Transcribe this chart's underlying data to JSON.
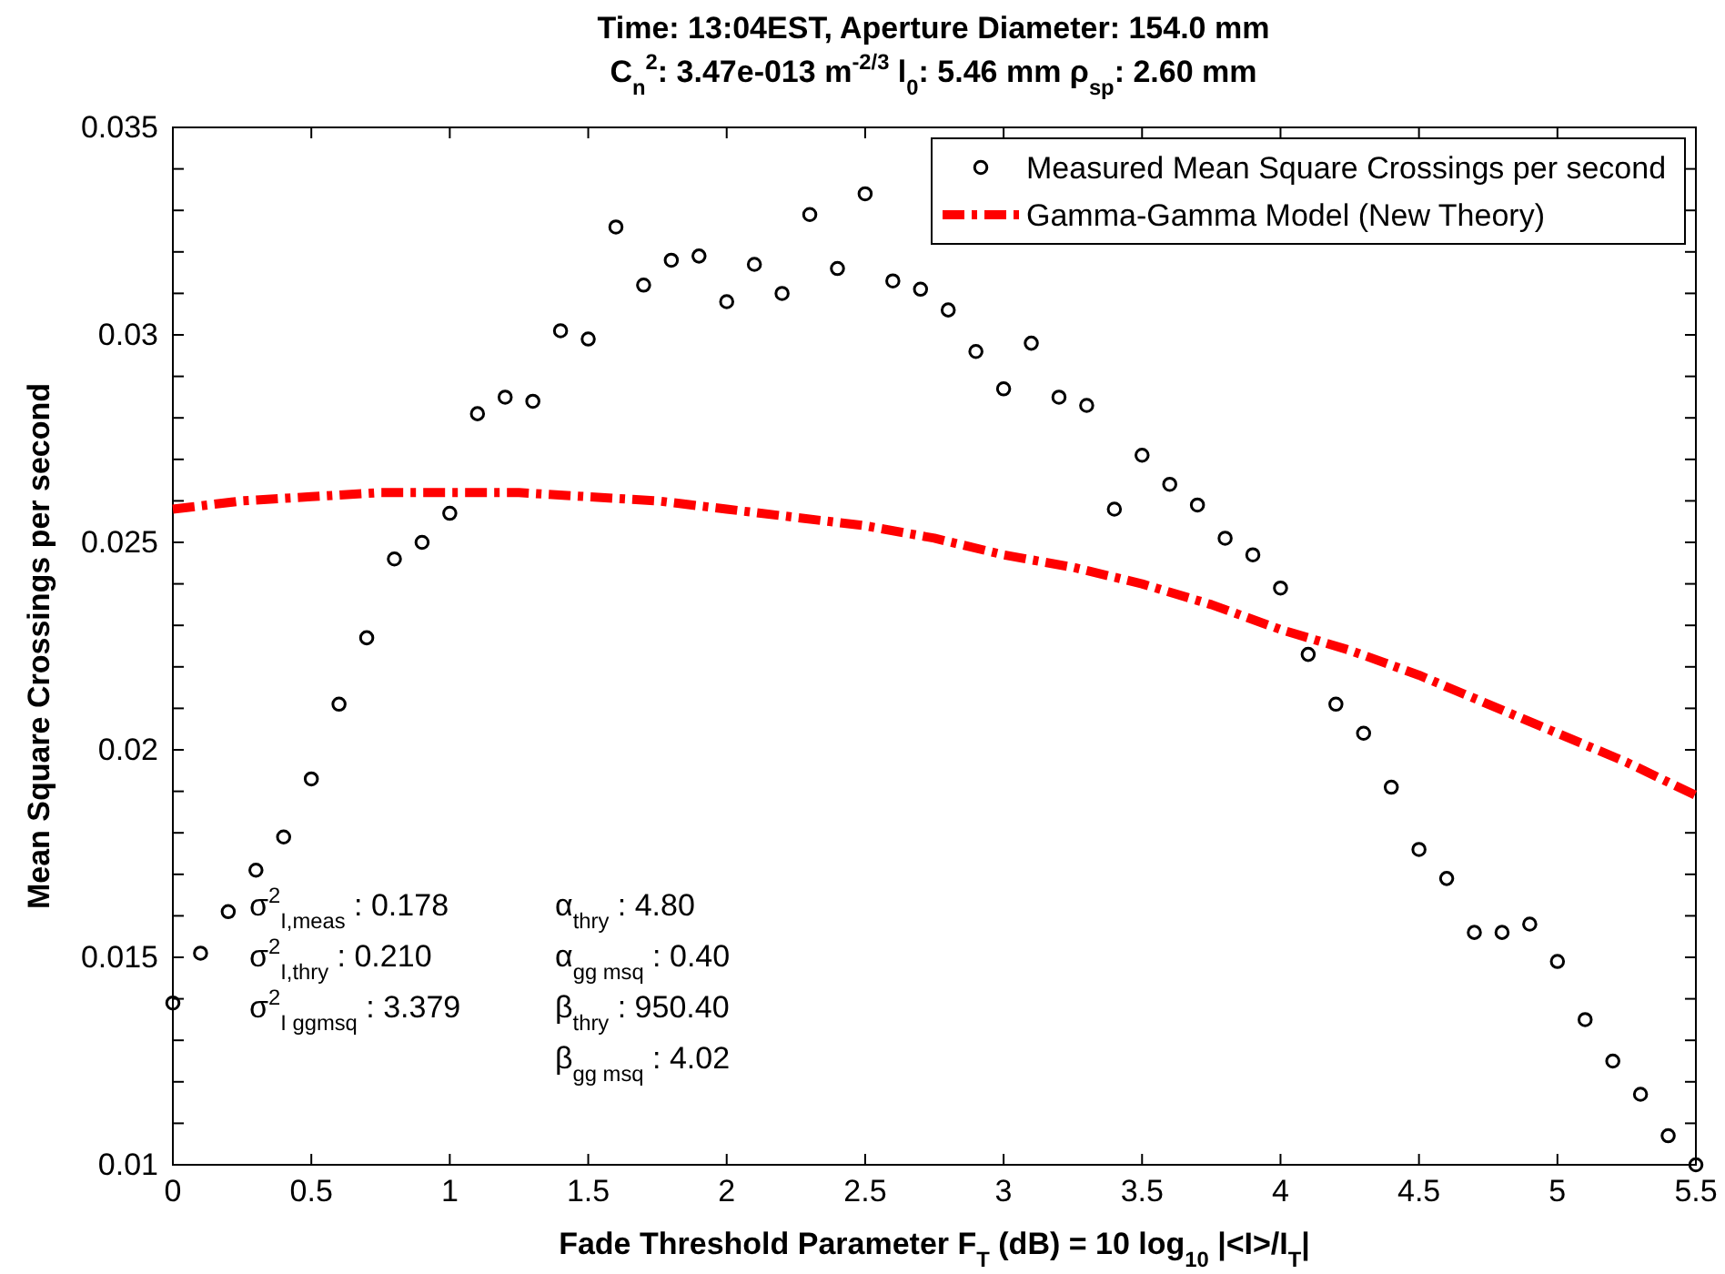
{
  "chart_data": {
    "type": "scatter",
    "title": "Time: 13:04EST,  Aperture Diameter: 154.0 mm",
    "subtitle": "C$_{n}$$^{2}$: 3.47e-013 m$^{-2/3}$  l$_{0}$: 5.46 mm  ρ$_{sp}$: 2.60 mm",
    "xlabel": "Fade Threshold Parameter F$_{T}$ (dB) = 10 log$_{10}$ |<I>/I$_{T}$|",
    "ylabel": "Mean Square Crossings per second",
    "xlim": [
      0,
      5.5
    ],
    "xticks": [
      0,
      0.5,
      1,
      1.5,
      2,
      2.5,
      3,
      3.5,
      4,
      4.5,
      5,
      5.5
    ],
    "ylim": [
      0.01,
      0.035
    ],
    "yticks": [
      0.01,
      {
        "value": 0.011,
        "label": null
      },
      {
        "value": 0.012,
        "label": null
      },
      {
        "value": 0.013,
        "label": null
      },
      {
        "value": 0.014,
        "label": null
      },
      0.015,
      {
        "value": 0.016,
        "label": null
      },
      {
        "value": 0.017,
        "label": null
      },
      {
        "value": 0.018,
        "label": null
      },
      {
        "value": 0.019,
        "label": null
      },
      0.02,
      {
        "value": 0.021,
        "label": null
      },
      {
        "value": 0.022,
        "label": null
      },
      {
        "value": 0.023,
        "label": null
      },
      {
        "value": 0.024,
        "label": null
      },
      0.025,
      {
        "value": 0.026,
        "label": null
      },
      {
        "value": 0.027,
        "label": null
      },
      {
        "value": 0.028,
        "label": null
      },
      {
        "value": 0.029,
        "label": null
      },
      0.03,
      {
        "value": 0.031,
        "label": null
      },
      {
        "value": 0.032,
        "label": null
      },
      {
        "value": 0.033,
        "label": null
      },
      {
        "value": 0.034,
        "label": null
      },
      0.035
    ],
    "legend": "top right",
    "grid": false,
    "series": [
      {
        "name": "Measured Mean Square Crossings per second",
        "marker": "circle",
        "color": "#000000",
        "x": [
          0,
          0.1,
          0.2,
          0.3,
          0.4,
          0.5,
          0.6,
          0.7,
          0.8,
          0.9,
          1.0,
          1.1,
          1.2,
          1.3,
          1.4,
          1.5,
          1.6,
          1.7,
          1.8,
          1.9,
          2.0,
          2.1,
          2.2,
          2.3,
          2.4,
          2.5,
          2.6,
          2.7,
          2.8,
          2.9,
          3.0,
          3.1,
          3.2,
          3.3,
          3.4,
          3.5,
          3.6,
          3.7,
          3.8,
          3.9,
          4.0,
          4.1,
          4.2,
          4.3,
          4.4,
          4.5,
          4.6,
          4.7,
          4.8,
          4.9,
          5.0,
          5.1,
          5.2,
          5.3,
          5.4,
          5.5
        ],
        "values": [
          0.0139,
          0.0151,
          0.0161,
          0.0171,
          0.0179,
          0.0193,
          0.0211,
          0.0227,
          0.0246,
          0.025,
          0.0257,
          0.0281,
          0.0285,
          0.0284,
          0.0301,
          0.0299,
          0.0326,
          0.0312,
          0.0318,
          0.0319,
          0.0308,
          0.0317,
          0.031,
          0.0329,
          0.0316,
          0.0334,
          0.0313,
          0.0311,
          0.0306,
          0.0296,
          0.0287,
          0.0298,
          0.0285,
          0.0283,
          0.0258,
          0.0271,
          0.0264,
          0.0259,
          0.0251,
          0.0247,
          0.0239,
          0.0223,
          0.0211,
          0.0204,
          0.0191,
          0.0176,
          0.0169,
          0.0156,
          0.0156,
          0.0158,
          0.0149,
          0.0135,
          0.0125,
          0.0117,
          0.0107,
          0.01
        ]
      },
      {
        "name": "Gamma-Gamma Model (New Theory)",
        "type": "line",
        "line_style": "dashed",
        "color": "#ff0000",
        "x": [
          0,
          0.25,
          0.5,
          0.75,
          1,
          1.25,
          1.5,
          1.75,
          2,
          2.25,
          2.5,
          2.75,
          3,
          3.25,
          3.5,
          3.75,
          4,
          4.25,
          4.5,
          4.75,
          5,
          5.25,
          5.5
        ],
        "values": [
          0.0258,
          0.026,
          0.0261,
          0.0262,
          0.0262,
          0.0262,
          0.0261,
          0.026,
          0.0258,
          0.0256,
          0.0254,
          0.0251,
          0.0247,
          0.0244,
          0.024,
          0.0235,
          0.0229,
          0.0224,
          0.0218,
          0.0211,
          0.0204,
          0.0197,
          0.0189
        ]
      }
    ],
    "annotations": [
      "σ$^{2}$$_{I,meas}$ : 0.178",
      "σ$^{2}$$_{I,thry}$ : 0.210",
      "σ$^{2}$$_{I ggmsq}$ : 3.379",
      "α$_{thry}$ : 4.80",
      "α$_{gg msq}$ : 0.40",
      "β$_{thry}$ : 950.40",
      "β$_{gg msq}$ : 4.02"
    ]
  }
}
